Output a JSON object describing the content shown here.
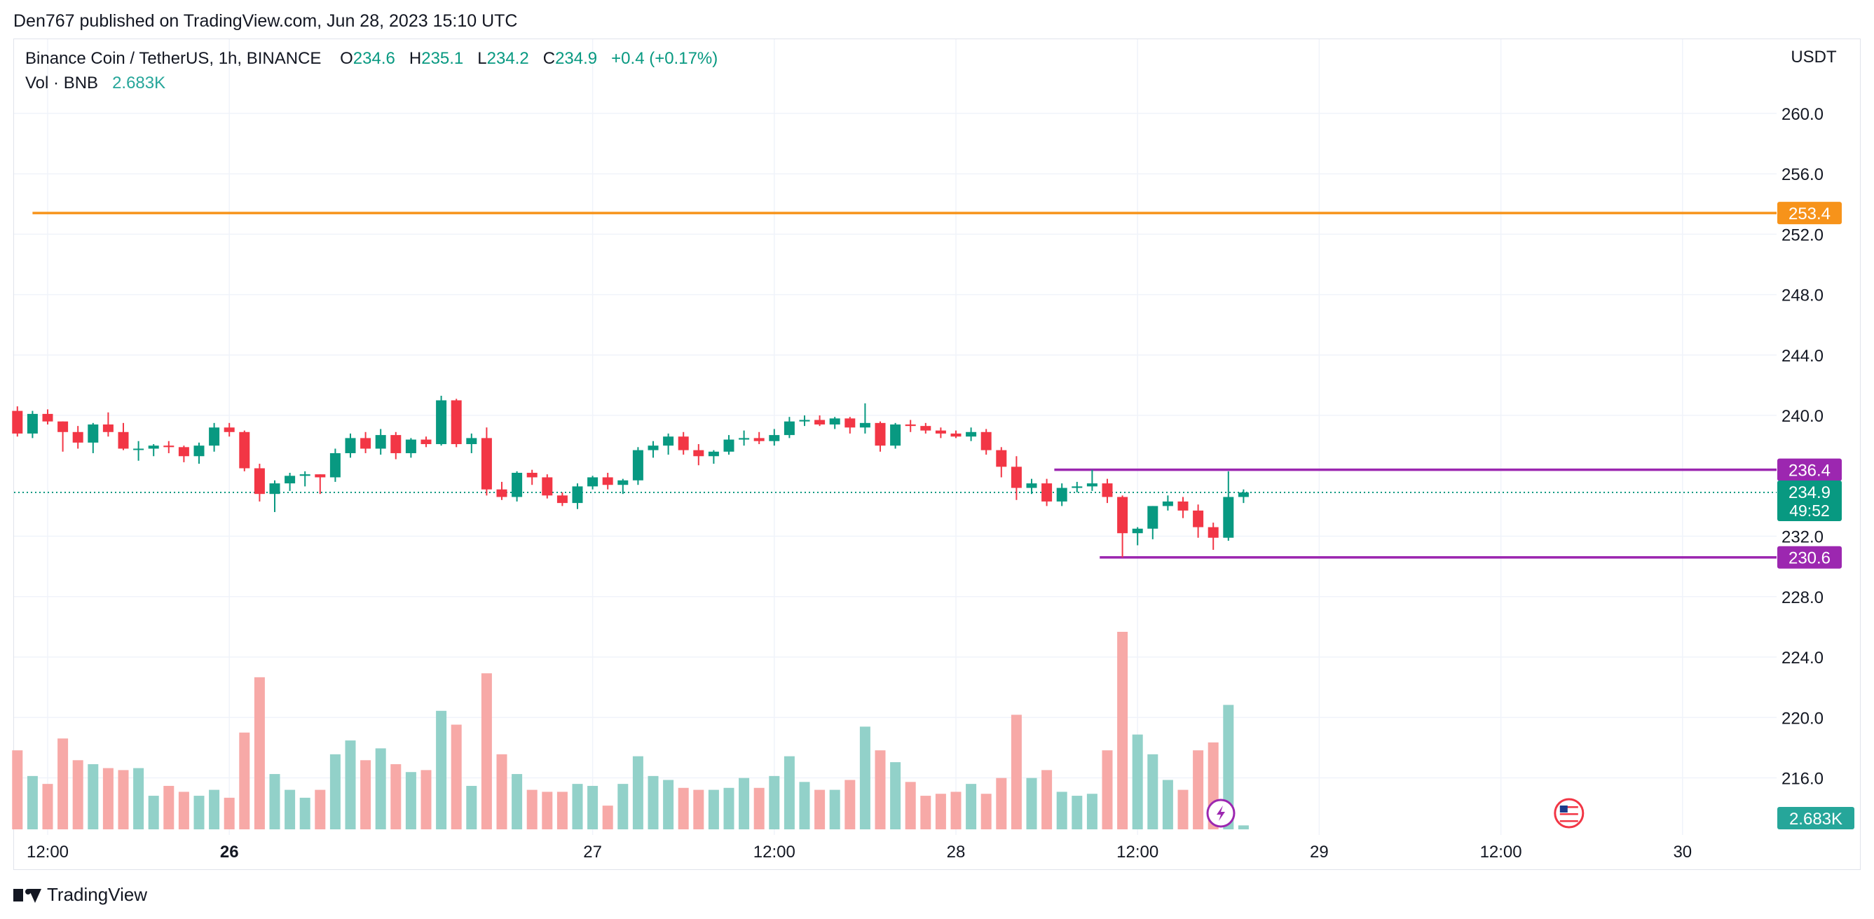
{
  "header": {
    "published": "Den767 published on TradingView.com, Jun 28, 2023 15:10 UTC"
  },
  "legend": {
    "symbol": "Binance Coin / TetherUS, 1h, BINANCE",
    "o_label": "O",
    "o_value": "234.6",
    "h_label": "H",
    "h_value": "235.1",
    "l_label": "L",
    "l_value": "234.2",
    "c_label": "C",
    "c_value": "234.9",
    "change": "+0.4 (+0.17%)",
    "vol_label": "Vol · BNB",
    "vol_value": "2.683K"
  },
  "footer": {
    "brand": "TradingView"
  },
  "chart_data": {
    "type": "candlestick",
    "currency_label": "USDT",
    "y_ticks": [
      "260.0",
      "256.0",
      "252.0",
      "248.0",
      "244.0",
      "240.0",
      "232.0",
      "228.0",
      "224.0",
      "220.0",
      "216.0"
    ],
    "ylim": [
      214.0,
      264.0
    ],
    "x_ticks": [
      "12:00",
      "26",
      "27",
      "12:00",
      "28",
      "12:00",
      "29",
      "12:00",
      "30"
    ],
    "x_tick_hours": [
      0,
      12,
      36,
      48,
      60,
      72,
      84,
      96,
      108
    ],
    "bold_x_ticks": [
      "26"
    ],
    "grid": true,
    "horizontal_levels": [
      {
        "value": 253.4,
        "label": "253.4",
        "color": "#f7931a",
        "from_hour": -1
      },
      {
        "value": 236.4,
        "label": "236.4",
        "color": "#9c27b0",
        "from_hour": 66.5
      },
      {
        "value": 230.6,
        "label": "230.6",
        "color": "#9c27b0",
        "from_hour": 69.5
      }
    ],
    "last_price": {
      "value": 234.9,
      "label": "234.9",
      "countdown": "49:52",
      "color": "#089981"
    },
    "last_volume_label": "2.683K",
    "colors": {
      "up": "#089981",
      "down": "#f23645",
      "vol_up": "#92d1c9",
      "vol_down": "#f7a9a7"
    },
    "first_candle_hour": -2,
    "candles": [
      [
        240.3,
        240.6,
        238.6,
        238.8,
        0.4
      ],
      [
        238.8,
        240.3,
        238.5,
        240.1,
        0.27
      ],
      [
        240.1,
        240.4,
        239.4,
        239.6,
        0.23
      ],
      [
        239.6,
        239.6,
        237.6,
        238.9,
        0.46
      ],
      [
        238.9,
        239.3,
        237.8,
        238.2,
        0.35
      ],
      [
        238.2,
        239.5,
        237.5,
        239.4,
        0.33
      ],
      [
        239.4,
        240.2,
        238.6,
        238.9,
        0.31
      ],
      [
        238.9,
        239.5,
        237.7,
        237.8,
        0.3
      ],
      [
        237.8,
        238.3,
        237.0,
        237.8,
        0.31
      ],
      [
        237.8,
        238.1,
        237.3,
        238.0,
        0.17
      ],
      [
        238.0,
        238.3,
        237.5,
        237.9,
        0.22
      ],
      [
        237.9,
        238.0,
        236.9,
        237.3,
        0.19
      ],
      [
        237.3,
        238.2,
        236.8,
        238.0,
        0.17
      ],
      [
        238.0,
        239.5,
        237.6,
        239.2,
        0.2
      ],
      [
        239.2,
        239.5,
        238.6,
        238.9,
        0.16
      ],
      [
        238.9,
        239.0,
        236.3,
        236.5,
        0.49
      ],
      [
        236.5,
        236.8,
        234.3,
        234.8,
        0.77
      ],
      [
        234.8,
        235.7,
        233.6,
        235.5,
        0.28
      ],
      [
        235.5,
        236.2,
        235.0,
        236.0,
        0.2
      ],
      [
        236.0,
        236.3,
        235.3,
        236.1,
        0.16
      ],
      [
        236.1,
        236.1,
        234.8,
        235.9,
        0.2
      ],
      [
        235.9,
        237.8,
        235.6,
        237.5,
        0.38
      ],
      [
        237.5,
        238.8,
        237.2,
        238.5,
        0.45
      ],
      [
        238.5,
        238.9,
        237.5,
        237.8,
        0.35
      ],
      [
        237.8,
        239.1,
        237.4,
        238.7,
        0.41
      ],
      [
        238.7,
        238.9,
        237.1,
        237.5,
        0.33
      ],
      [
        237.5,
        238.5,
        237.2,
        238.4,
        0.29
      ],
      [
        238.4,
        238.6,
        237.9,
        238.1,
        0.3
      ],
      [
        238.1,
        241.3,
        238.0,
        241.0,
        0.6
      ],
      [
        241.0,
        241.1,
        237.9,
        238.1,
        0.53
      ],
      [
        238.1,
        238.8,
        237.5,
        238.5,
        0.22
      ],
      [
        238.5,
        239.2,
        234.7,
        235.1,
        0.79
      ],
      [
        235.1,
        235.6,
        234.4,
        234.6,
        0.38
      ],
      [
        234.6,
        236.3,
        234.3,
        236.2,
        0.28
      ],
      [
        236.2,
        236.4,
        235.4,
        235.9,
        0.2
      ],
      [
        235.9,
        236.1,
        234.5,
        234.7,
        0.19
      ],
      [
        234.7,
        234.9,
        234.0,
        234.2,
        0.19
      ],
      [
        234.2,
        235.5,
        233.8,
        235.3,
        0.23
      ],
      [
        235.3,
        236.0,
        235.1,
        235.9,
        0.22
      ],
      [
        235.9,
        236.2,
        235.1,
        235.4,
        0.12
      ],
      [
        235.4,
        235.8,
        234.8,
        235.7,
        0.23
      ],
      [
        235.7,
        237.9,
        235.4,
        237.7,
        0.37
      ],
      [
        237.7,
        238.3,
        237.2,
        238.0,
        0.27
      ],
      [
        238.0,
        238.8,
        237.4,
        238.6,
        0.25
      ],
      [
        238.6,
        238.9,
        237.4,
        237.7,
        0.21
      ],
      [
        237.7,
        238.1,
        236.7,
        237.3,
        0.2
      ],
      [
        237.3,
        237.7,
        236.8,
        237.6,
        0.2
      ],
      [
        237.6,
        238.7,
        237.4,
        238.4,
        0.21
      ],
      [
        238.4,
        239.0,
        238.0,
        238.5,
        0.26
      ],
      [
        238.5,
        238.9,
        238.1,
        238.3,
        0.21
      ],
      [
        238.3,
        239.1,
        238.0,
        238.7,
        0.27
      ],
      [
        238.7,
        239.9,
        238.5,
        239.6,
        0.37
      ],
      [
        239.6,
        240.0,
        239.3,
        239.7,
        0.24
      ],
      [
        239.7,
        240.0,
        239.3,
        239.4,
        0.2
      ],
      [
        239.4,
        239.9,
        239.1,
        239.8,
        0.2
      ],
      [
        239.8,
        239.9,
        238.8,
        239.2,
        0.25
      ],
      [
        239.2,
        240.8,
        238.8,
        239.5,
        0.52
      ],
      [
        239.5,
        239.6,
        237.6,
        238.0,
        0.4
      ],
      [
        238.0,
        239.5,
        237.8,
        239.4,
        0.34
      ],
      [
        239.4,
        239.7,
        238.9,
        239.3,
        0.24
      ],
      [
        239.3,
        239.5,
        238.8,
        239.0,
        0.17
      ],
      [
        239.0,
        239.2,
        238.5,
        238.8,
        0.18
      ],
      [
        238.8,
        239.0,
        238.5,
        238.6,
        0.19
      ],
      [
        238.6,
        239.2,
        238.3,
        238.9,
        0.23
      ],
      [
        238.9,
        239.1,
        237.4,
        237.7,
        0.18
      ],
      [
        237.7,
        237.9,
        235.9,
        236.6,
        0.26
      ],
      [
        236.6,
        237.3,
        234.4,
        235.2,
        0.58
      ],
      [
        235.2,
        235.8,
        234.8,
        235.5,
        0.26
      ],
      [
        235.5,
        235.8,
        234.0,
        234.3,
        0.3
      ],
      [
        234.3,
        235.5,
        234.0,
        235.2,
        0.19
      ],
      [
        235.2,
        235.6,
        234.9,
        235.3,
        0.17
      ],
      [
        235.3,
        236.4,
        235.0,
        235.5,
        0.18
      ],
      [
        235.5,
        235.8,
        234.2,
        234.6,
        0.4
      ],
      [
        234.6,
        234.7,
        230.6,
        232.2,
        1.0
      ],
      [
        232.2,
        232.6,
        231.4,
        232.5,
        0.48
      ],
      [
        232.5,
        234.0,
        231.8,
        234.0,
        0.38
      ],
      [
        234.0,
        234.7,
        233.7,
        234.3,
        0.25
      ],
      [
        234.3,
        234.6,
        233.2,
        233.7,
        0.2
      ],
      [
        233.7,
        234.1,
        231.9,
        232.6,
        0.4
      ],
      [
        232.6,
        232.9,
        231.1,
        231.9,
        0.44
      ],
      [
        231.9,
        236.3,
        231.7,
        234.6,
        0.63
      ],
      [
        234.6,
        235.1,
        234.2,
        234.9,
        0.02
      ]
    ]
  }
}
